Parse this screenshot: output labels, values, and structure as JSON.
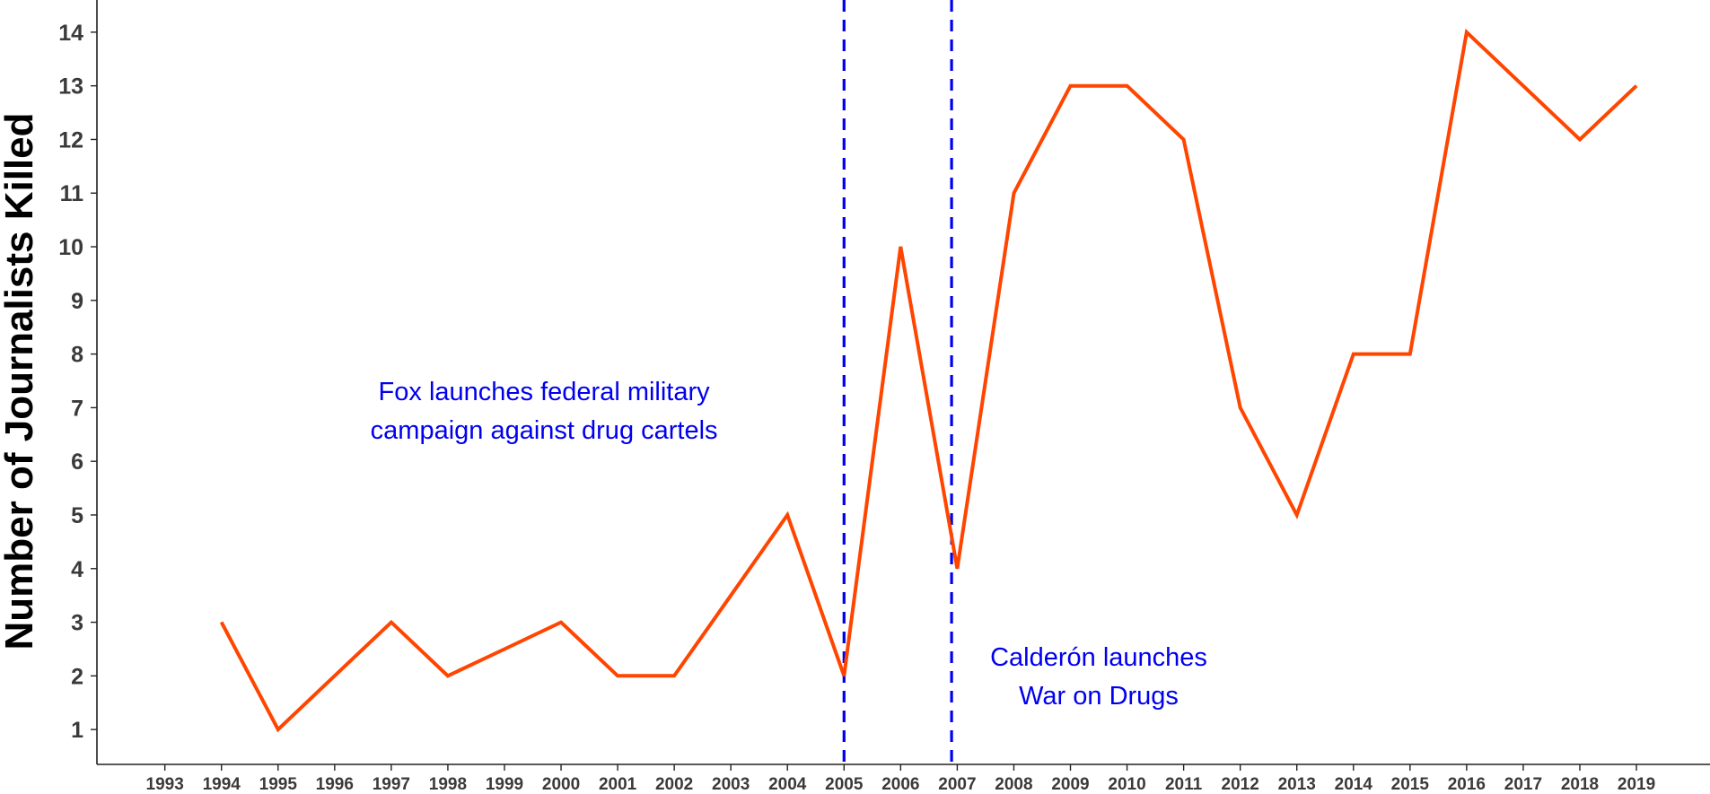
{
  "chart_data": {
    "type": "line",
    "title": "",
    "xlabel": "",
    "ylabel": "Number of Journalists Killed",
    "x_ticks": [
      "1993",
      "1994",
      "1995",
      "1996",
      "1997",
      "1998",
      "1999",
      "2000",
      "2001",
      "2002",
      "2003",
      "2004",
      "2005",
      "2006",
      "2007",
      "2008",
      "2009",
      "2010",
      "2011",
      "2012",
      "2013",
      "2014",
      "2015",
      "2016",
      "2017",
      "2018",
      "2019"
    ],
    "y_ticks": [
      1,
      2,
      3,
      4,
      5,
      6,
      7,
      8,
      9,
      10,
      11,
      12,
      13,
      14
    ],
    "xlim": [
      1991.8,
      2020.3
    ],
    "ylim": [
      0.35,
      14.6
    ],
    "grid": false,
    "legend": "none",
    "series": [
      {
        "color": "#ff4500",
        "x": [
          1994,
          1995,
          1996,
          1997,
          1998,
          1999,
          2000,
          2001,
          2002,
          2003,
          2004,
          2005,
          2006,
          2007,
          2008,
          2009,
          2010,
          2011,
          2012,
          2013,
          2014,
          2015,
          2016,
          2017,
          2018,
          2019
        ],
        "y": [
          3,
          1,
          2,
          3,
          2,
          2.5,
          3,
          2,
          2,
          3.5,
          5,
          2,
          10,
          4,
          11,
          13,
          13,
          12,
          7,
          5,
          8,
          8,
          14,
          13,
          12,
          13
        ]
      }
    ],
    "reference_lines": [
      {
        "x": 2005,
        "color": "#0000ee",
        "style": "dashed"
      },
      {
        "x": 2006.9,
        "color": "#0000ee",
        "style": "dashed"
      }
    ],
    "annotations": [
      {
        "lines": [
          "Fox launches federal military",
          "campaign against drug cartels"
        ],
        "x": 1999.7,
        "y": 6.95,
        "color": "#0000ee"
      },
      {
        "lines": [
          "Calderón launches",
          "War on Drugs"
        ],
        "x": 2009.5,
        "y": 2.0,
        "color": "#0000ee"
      }
    ]
  }
}
